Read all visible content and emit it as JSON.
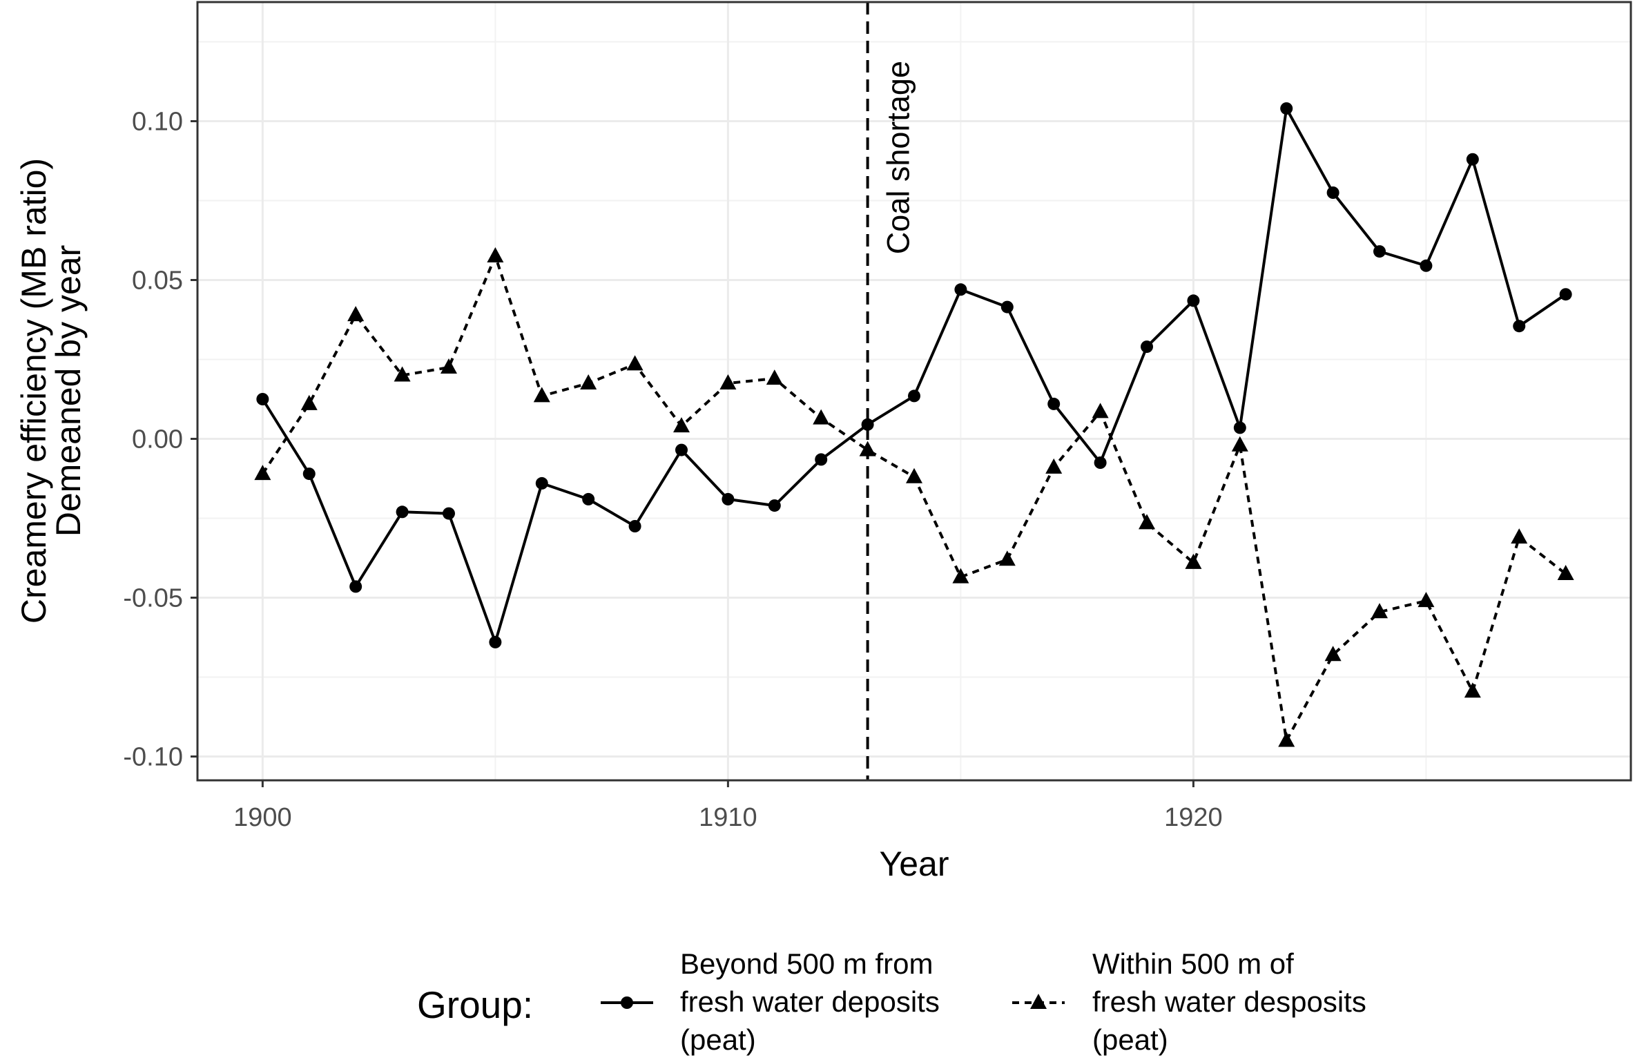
{
  "chart_data": {
    "type": "line",
    "xlabel": "Year",
    "ylabel_lines": [
      "Creamery efficiency (MB ratio)",
      "Demeaned by year"
    ],
    "x_ticks": [
      1900,
      1910,
      1920
    ],
    "y_ticks": [
      0.1,
      0.05,
      0.0,
      -0.05,
      -0.1
    ],
    "y_tick_labels": [
      "0.10",
      "0.05",
      "0.00",
      "-0.05",
      "-0.10"
    ],
    "xlim": [
      1898.6,
      1929.4
    ],
    "ylim": [
      -0.1075,
      0.1375
    ],
    "grid": true,
    "annotations": [
      {
        "type": "vline",
        "x": 1913,
        "linestyle": "dashed",
        "label": "Coal shortage"
      }
    ],
    "x": [
      1900,
      1901,
      1902,
      1903,
      1904,
      1905,
      1906,
      1907,
      1908,
      1909,
      1910,
      1911,
      1912,
      1913,
      1914,
      1915,
      1916,
      1917,
      1918,
      1919,
      1920,
      1921,
      1922,
      1923,
      1924,
      1925,
      1926,
      1927,
      1928
    ],
    "series": [
      {
        "legend_lines": [
          "Beyond 500 m from",
          "fresh water deposits",
          "(peat)"
        ],
        "marker": "circle",
        "linestyle": "solid",
        "values": [
          0.0125,
          -0.011,
          -0.0465,
          -0.023,
          -0.0235,
          -0.064,
          -0.014,
          -0.019,
          -0.0275,
          -0.0035,
          -0.019,
          -0.021,
          -0.0065,
          0.0045,
          0.0135,
          0.047,
          0.0415,
          0.011,
          -0.0075,
          0.029,
          0.0435,
          0.0035,
          0.104,
          0.0775,
          0.059,
          0.0545,
          0.088,
          0.0355,
          0.0455
        ]
      },
      {
        "legend_lines": [
          "Within 500 m of",
          "fresh water desposits",
          "(peat)"
        ],
        "marker": "triangle",
        "linestyle": "dashed",
        "values": [
          -0.011,
          0.011,
          0.039,
          0.02,
          0.0225,
          0.0575,
          0.0135,
          0.0175,
          0.0235,
          0.004,
          0.0175,
          0.019,
          0.0065,
          -0.0035,
          -0.012,
          -0.0435,
          -0.038,
          -0.009,
          0.0085,
          -0.0265,
          -0.039,
          -0.002,
          -0.095,
          -0.068,
          -0.0545,
          -0.051,
          -0.0795,
          -0.031,
          -0.0425
        ]
      }
    ],
    "legend": {
      "title": "Group:",
      "position": "bottom"
    }
  }
}
